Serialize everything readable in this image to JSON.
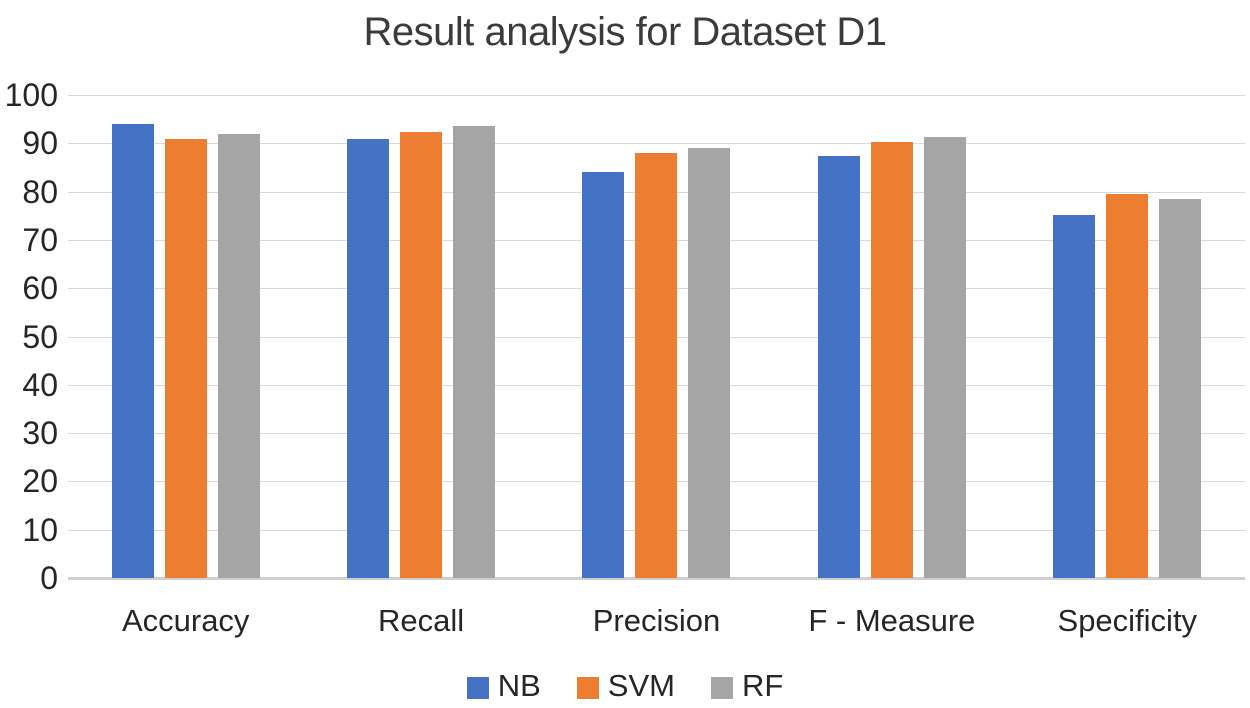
{
  "chart_data": {
    "type": "bar",
    "title": "Result analysis for Dataset D1",
    "categories": [
      "Accuracy",
      "Recall",
      "Precision",
      "F - Measure",
      "Specificity"
    ],
    "series": [
      {
        "name": "NB",
        "color": "#4472C4",
        "values": [
          94.0,
          90.8,
          84.0,
          87.3,
          75.2
        ]
      },
      {
        "name": "SVM",
        "color": "#ED7D31",
        "values": [
          90.8,
          92.4,
          88.0,
          90.2,
          79.6
        ]
      },
      {
        "name": "RF",
        "color": "#A5A5A5",
        "values": [
          92.0,
          93.5,
          89.0,
          91.3,
          78.5
        ]
      }
    ],
    "ylim": [
      0,
      100
    ],
    "yticks": [
      0,
      10,
      20,
      30,
      40,
      50,
      60,
      70,
      80,
      90,
      100
    ],
    "xlabel": "",
    "ylabel": "",
    "grid": "horizontal",
    "legend_position": "bottom"
  },
  "styles": {
    "grid_color": "#d9d9d9",
    "axis_line_color": "#d0cece",
    "text_color": "#262626",
    "title_color": "#3b3b3b",
    "background": "#ffffff"
  }
}
